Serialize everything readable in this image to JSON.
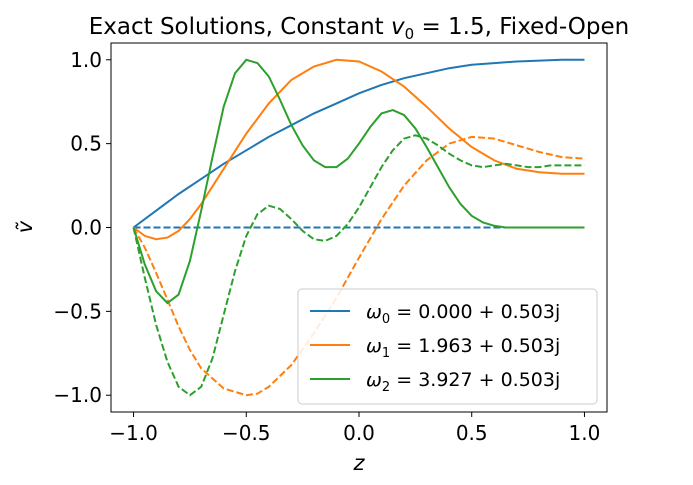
{
  "chart_data": {
    "type": "line",
    "title": "Exact Solutions, Constant v₀ = 1.5, Fixed-Open",
    "title_parts": {
      "prefix": "Exact Solutions, Constant ",
      "var": "v",
      "sub": "0",
      "suffix": " = 1.5, Fixed-Open"
    },
    "xlabel": "z",
    "ylabel": "ṽ",
    "xlim": [
      -1.1,
      1.1
    ],
    "ylim": [
      -1.1,
      1.1
    ],
    "xticks": [
      -1.0,
      -0.5,
      0.0,
      0.5,
      1.0
    ],
    "xtick_labels": [
      "−1.0",
      "−0.5",
      "0.0",
      "0.5",
      "1.0"
    ],
    "yticks": [
      -1.0,
      -0.5,
      0.0,
      0.5,
      1.0
    ],
    "ytick_labels": [
      "−1.0",
      "−0.5",
      "0.0",
      "0.5",
      "1.0"
    ],
    "grid": false,
    "legend_position": "lower-right",
    "series": [
      {
        "name": "ω₀ = 0.000 + 0.503j",
        "legend": {
          "sym": "ω",
          "sub": "0",
          "rest": " = 0.000 + 0.503j"
        },
        "color": "#1f77b4",
        "solid": {
          "x": [
            -1.0,
            -0.9,
            -0.8,
            -0.7,
            -0.6,
            -0.5,
            -0.4,
            -0.3,
            -0.2,
            -0.1,
            0.0,
            0.1,
            0.2,
            0.3,
            0.4,
            0.5,
            0.6,
            0.7,
            0.8,
            0.9,
            1.0
          ],
          "y": [
            0.0,
            0.1,
            0.2,
            0.29,
            0.38,
            0.46,
            0.54,
            0.61,
            0.68,
            0.74,
            0.8,
            0.85,
            0.89,
            0.92,
            0.95,
            0.97,
            0.98,
            0.99,
            0.995,
            1.0,
            1.0
          ]
        },
        "dashed": {
          "x": [
            -1.0,
            1.0
          ],
          "y": [
            0.0,
            0.0
          ]
        }
      },
      {
        "name": "ω₁ = 1.963 + 0.503j",
        "legend": {
          "sym": "ω",
          "sub": "1",
          "rest": " = 1.963 + 0.503j"
        },
        "color": "#ff7f0e",
        "solid": {
          "x": [
            -1.0,
            -0.95,
            -0.9,
            -0.85,
            -0.8,
            -0.75,
            -0.7,
            -0.6,
            -0.5,
            -0.4,
            -0.3,
            -0.2,
            -0.1,
            0.0,
            0.1,
            0.2,
            0.3,
            0.4,
            0.5,
            0.6,
            0.7,
            0.8,
            0.9,
            1.0
          ],
          "y": [
            0.0,
            -0.05,
            -0.07,
            -0.06,
            -0.02,
            0.05,
            0.14,
            0.35,
            0.56,
            0.74,
            0.88,
            0.96,
            1.0,
            0.99,
            0.93,
            0.84,
            0.72,
            0.59,
            0.48,
            0.4,
            0.35,
            0.33,
            0.32,
            0.32
          ]
        },
        "dashed": {
          "x": [
            -1.0,
            -0.95,
            -0.9,
            -0.85,
            -0.8,
            -0.75,
            -0.7,
            -0.6,
            -0.5,
            -0.45,
            -0.4,
            -0.3,
            -0.2,
            -0.1,
            0.0,
            0.1,
            0.2,
            0.3,
            0.4,
            0.5,
            0.6,
            0.7,
            0.8,
            0.9,
            1.0
          ],
          "y": [
            0.0,
            -0.12,
            -0.27,
            -0.43,
            -0.59,
            -0.73,
            -0.84,
            -0.96,
            -1.0,
            -0.99,
            -0.95,
            -0.82,
            -0.63,
            -0.42,
            -0.18,
            0.05,
            0.25,
            0.4,
            0.5,
            0.54,
            0.53,
            0.49,
            0.45,
            0.42,
            0.41
          ]
        }
      },
      {
        "name": "ω₂ = 3.927 + 0.503j",
        "legend": {
          "sym": "ω",
          "sub": "2",
          "rest": " = 3.927 + 0.503j"
        },
        "color": "#2ca02c",
        "solid": {
          "x": [
            -1.0,
            -0.95,
            -0.9,
            -0.85,
            -0.8,
            -0.75,
            -0.7,
            -0.65,
            -0.6,
            -0.55,
            -0.5,
            -0.45,
            -0.4,
            -0.35,
            -0.3,
            -0.25,
            -0.2,
            -0.15,
            -0.1,
            -0.05,
            0.0,
            0.05,
            0.1,
            0.15,
            0.2,
            0.25,
            0.3,
            0.35,
            0.4,
            0.45,
            0.5,
            0.55,
            0.6,
            0.65,
            0.7,
            0.75,
            0.8,
            0.85,
            0.9,
            0.95,
            1.0
          ],
          "y": [
            0.0,
            -0.22,
            -0.38,
            -0.45,
            -0.4,
            -0.2,
            0.1,
            0.42,
            0.72,
            0.92,
            1.0,
            0.98,
            0.9,
            0.76,
            0.61,
            0.49,
            0.4,
            0.36,
            0.36,
            0.41,
            0.5,
            0.6,
            0.68,
            0.7,
            0.67,
            0.59,
            0.48,
            0.36,
            0.24,
            0.14,
            0.07,
            0.03,
            0.01,
            0.0,
            0.0,
            0.0,
            0.0,
            0.0,
            0.0,
            0.0,
            0.0
          ]
        },
        "dashed": {
          "x": [
            -1.0,
            -0.95,
            -0.9,
            -0.85,
            -0.8,
            -0.75,
            -0.7,
            -0.65,
            -0.6,
            -0.55,
            -0.5,
            -0.45,
            -0.4,
            -0.35,
            -0.3,
            -0.25,
            -0.2,
            -0.15,
            -0.1,
            -0.05,
            0.0,
            0.05,
            0.1,
            0.15,
            0.2,
            0.25,
            0.3,
            0.35,
            0.4,
            0.45,
            0.5,
            0.55,
            0.6,
            0.65,
            0.7,
            0.75,
            0.8,
            0.85,
            0.9,
            0.95,
            1.0
          ],
          "y": [
            0.0,
            -0.3,
            -0.58,
            -0.8,
            -0.95,
            -1.0,
            -0.95,
            -0.78,
            -0.52,
            -0.26,
            -0.05,
            0.08,
            0.13,
            0.11,
            0.05,
            -0.02,
            -0.07,
            -0.08,
            -0.05,
            0.02,
            0.12,
            0.24,
            0.36,
            0.46,
            0.53,
            0.55,
            0.53,
            0.49,
            0.44,
            0.4,
            0.37,
            0.36,
            0.37,
            0.38,
            0.37,
            0.36,
            0.36,
            0.37,
            0.37,
            0.37,
            0.37
          ]
        }
      }
    ]
  }
}
